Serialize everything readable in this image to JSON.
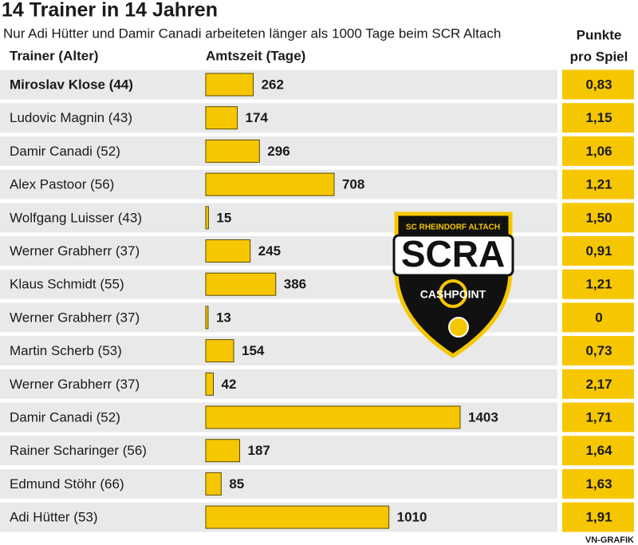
{
  "chart_data": {
    "type": "bar",
    "title": "14 Trainer in 14 Jahren",
    "subtitle": "Nur Adi Hütter und Damir Canadi arbeiteten länger als 1000 Tage beim SCR Altach",
    "category_label": "Trainer (Alter)",
    "value_label": "Amtszeit (Tage)",
    "points_header": [
      "Punkte",
      "pro Spiel"
    ],
    "categories": [
      "Miroslav Klose (44)",
      "Ludovic Magnin (43)",
      "Damir Canadi (52)",
      "Alex Pastoor (56)",
      "Wolfgang Luisser (43)",
      "Werner Grabherr (37)",
      "Klaus Schmidt (55)",
      "Werner Grabherr (37)",
      "Martin Scherb (53)",
      "Werner Grabherr (37)",
      "Damir Canadi (52)",
      "Rainer Scharinger (56)",
      "Edmund Stöhr (66)",
      "Adi Hütter (53)"
    ],
    "values": [
      262,
      174,
      296,
      708,
      15,
      245,
      386,
      13,
      154,
      42,
      1403,
      187,
      85,
      1010
    ],
    "points": [
      "0,83",
      "1,15",
      "1,06",
      "1,21",
      "1,50",
      "0,91",
      "1,21",
      "0",
      "0,73",
      "2,17",
      "1,71",
      "1,64",
      "1,63",
      "1,91"
    ],
    "color": "#f6c700",
    "source": "VN-GRAFIK",
    "logo": {
      "top": "SC RHEINDORF ALTACH",
      "main": "SCRA",
      "sponsor": "CASHPOINT"
    }
  }
}
